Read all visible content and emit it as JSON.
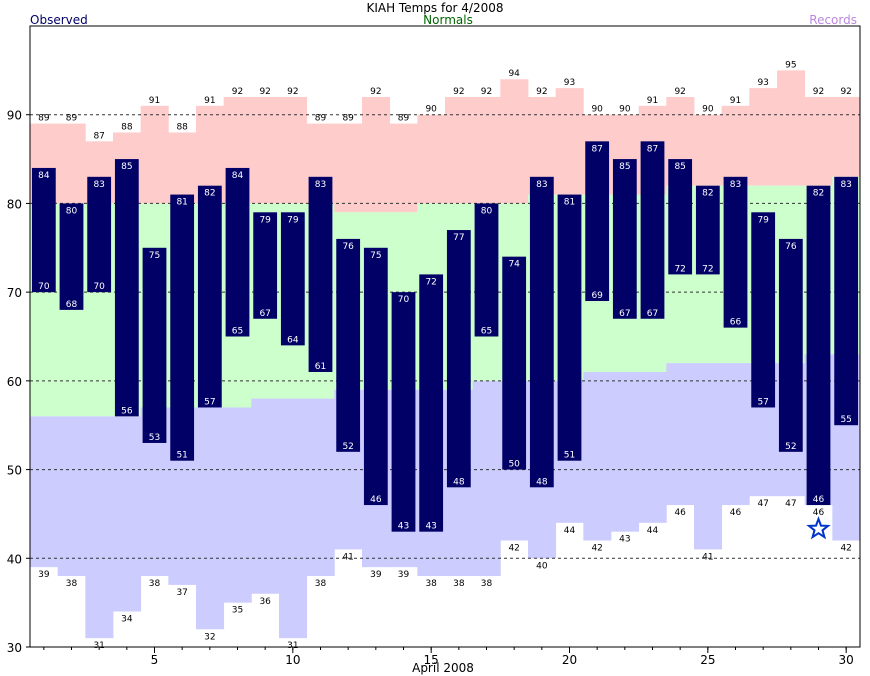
{
  "chart_data": {
    "type": "bar",
    "title": "KIAH Temps for 4/2008",
    "xlabel": "April 2008",
    "ylabel": "",
    "ylim": [
      30,
      100
    ],
    "xlim": [
      0.5,
      30.5
    ],
    "grid": true,
    "grid_lines": [
      40,
      50,
      60,
      70,
      80,
      90
    ],
    "y_ticks": [
      30,
      40,
      50,
      60,
      70,
      80,
      90
    ],
    "x_ticks": [
      5,
      10,
      15,
      20,
      25,
      30
    ],
    "legend": {
      "left": "Observed",
      "center": "Normals",
      "right": "Records"
    },
    "colors": {
      "observed": "#000066",
      "normals": "#ccffcc",
      "records_high": "#ffcccc",
      "records_low": "#ccccff",
      "observed_label": "#000066",
      "normals_label": "#006600",
      "records_label": "#bb88dd",
      "star": "#0033cc"
    },
    "days": [
      1,
      2,
      3,
      4,
      5,
      6,
      7,
      8,
      9,
      10,
      11,
      12,
      13,
      14,
      15,
      16,
      17,
      18,
      19,
      20,
      21,
      22,
      23,
      24,
      25,
      26,
      27,
      28,
      29,
      30
    ],
    "observed_high": [
      84,
      80,
      83,
      85,
      75,
      81,
      82,
      84,
      79,
      79,
      83,
      76,
      75,
      70,
      72,
      77,
      80,
      74,
      83,
      81,
      87,
      85,
      87,
      85,
      82,
      83,
      79,
      76,
      82,
      83
    ],
    "observed_low": [
      70,
      68,
      70,
      56,
      53,
      51,
      57,
      65,
      67,
      64,
      61,
      52,
      46,
      43,
      43,
      48,
      65,
      50,
      48,
      51,
      69,
      67,
      67,
      72,
      72,
      66,
      57,
      52,
      46,
      55
    ],
    "normal_high": [
      80,
      80,
      80,
      80,
      80,
      80,
      80,
      80,
      80,
      80,
      80,
      79,
      79,
      79,
      80,
      80,
      80,
      80,
      81,
      81,
      81,
      81,
      81,
      82,
      82,
      82,
      82,
      82,
      82,
      83
    ],
    "normal_low": [
      56,
      56,
      56,
      56,
      57,
      57,
      57,
      57,
      58,
      58,
      58,
      59,
      59,
      59,
      59,
      59,
      60,
      60,
      60,
      60,
      61,
      61,
      61,
      62,
      62,
      62,
      62,
      62,
      63,
      63
    ],
    "record_high": [
      89,
      89,
      87,
      88,
      91,
      88,
      91,
      92,
      92,
      92,
      89,
      89,
      92,
      89,
      90,
      92,
      92,
      94,
      92,
      93,
      90,
      90,
      91,
      92,
      90,
      91,
      93,
      95,
      92,
      92
    ],
    "record_low": [
      39,
      38,
      31,
      34,
      38,
      37,
      32,
      35,
      36,
      31,
      38,
      41,
      39,
      39,
      38,
      38,
      38,
      42,
      40,
      44,
      42,
      43,
      44,
      46,
      41,
      46,
      47,
      47,
      46,
      42
    ],
    "record_high_labels": [
      "89",
      "89",
      "87",
      "88",
      "91",
      "88",
      "91",
      "92",
      "92",
      "92",
      "89",
      "89",
      "92",
      "89",
      "90",
      "92",
      "92",
      "94",
      "92",
      "93",
      "90",
      "90",
      "91",
      "92",
      "90",
      "91",
      "93",
      "95",
      "92",
      "92"
    ],
    "record_low_labels": [
      "39",
      "38",
      "31",
      "34",
      "38",
      "37",
      "32",
      "35",
      "36",
      "31",
      "38",
      "41",
      "39",
      "39",
      "38",
      "38",
      "38",
      "42",
      "40",
      "44",
      "42",
      "43",
      "44",
      "46",
      "41",
      "46",
      "47",
      "47",
      "46",
      "42"
    ],
    "observed_high_labels": [
      "84",
      "80",
      "83",
      "85",
      "75",
      "81",
      "82",
      "84",
      "79",
      "79",
      "83",
      "76",
      "75",
      "70",
      "72",
      "77",
      "80",
      "74",
      "83",
      "81",
      "87",
      "85",
      "87",
      "85",
      "82",
      "83",
      "79",
      "76",
      "82",
      "83"
    ],
    "observed_low_labels": [
      "70",
      "68",
      "70",
      "56",
      "53",
      "51",
      "57",
      "65",
      "67",
      "64",
      "61",
      "52",
      "46",
      "43",
      "43",
      "48",
      "65",
      "50",
      "48",
      "51",
      "69",
      "67",
      "67",
      "72",
      "72",
      "66",
      "57",
      "52",
      "46",
      "55"
    ],
    "y_tick_labels": [
      "30",
      "40",
      "50",
      "60",
      "70",
      "80",
      "90"
    ],
    "x_tick_labels": [
      "5",
      "10",
      "15",
      "20",
      "25",
      "30"
    ],
    "annotations": [
      {
        "type": "star",
        "day": 29,
        "value": 43.3,
        "meaning": "record low marker"
      }
    ]
  }
}
